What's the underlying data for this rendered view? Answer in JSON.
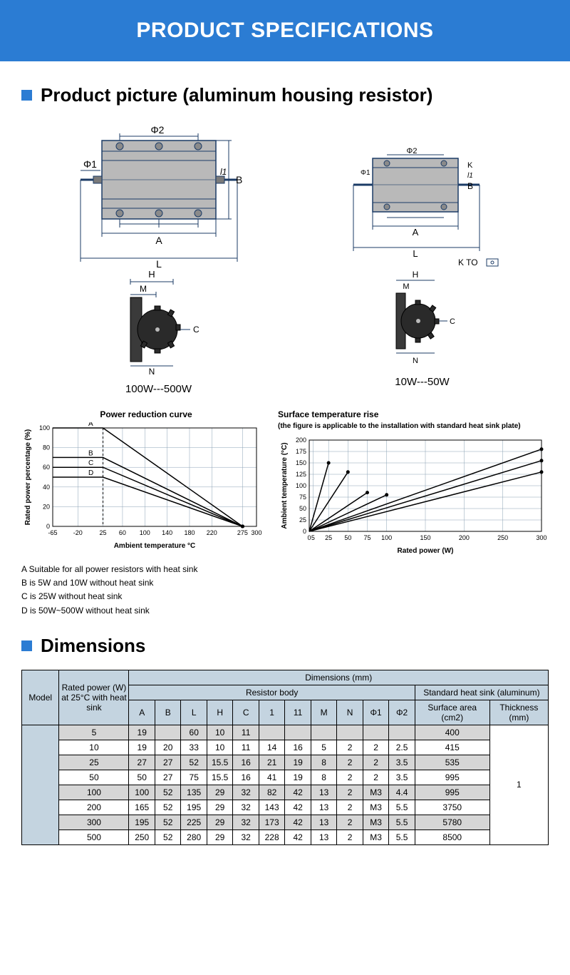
{
  "banner": {
    "title": "PRODUCT SPECIFICATIONS"
  },
  "section1": {
    "heading": "Product picture (aluminum housing resistor)",
    "left_label": "100W---500W",
    "right_label": "10W---50W",
    "diag_labels": {
      "phi1": "Φ1",
      "phi2": "Φ2",
      "A": "A",
      "L": "L",
      "B": "B",
      "l1": "l1",
      "K": "K",
      "H": "H",
      "M": "M",
      "N": "N",
      "C": "C",
      "Kto": "K  TO"
    }
  },
  "chart1": {
    "title": "Power reduction curve",
    "yaxis_label": "Rated power percentage (%)",
    "xaxis_label": "Ambient temperature °C",
    "xlim": [
      -65,
      300
    ],
    "ylim": [
      0,
      100
    ],
    "xticks": [
      -65,
      -20,
      25,
      60,
      100,
      140,
      180,
      220,
      275,
      300
    ],
    "yticks": [
      0,
      20,
      40,
      60,
      80,
      100
    ],
    "series": [
      {
        "name": "A",
        "points": [
          [
            -65,
            100
          ],
          [
            25,
            100
          ],
          [
            275,
            0
          ]
        ]
      },
      {
        "name": "B",
        "points": [
          [
            -65,
            70
          ],
          [
            25,
            70
          ],
          [
            275,
            0
          ]
        ]
      },
      {
        "name": "C",
        "points": [
          [
            -65,
            60
          ],
          [
            25,
            60
          ],
          [
            275,
            0
          ]
        ]
      },
      {
        "name": "D",
        "points": [
          [
            -65,
            50
          ],
          [
            25,
            50
          ],
          [
            275,
            0
          ]
        ]
      }
    ],
    "line_color": "#000000",
    "grid_color": "#8aa0b4",
    "bg": "#ffffff",
    "notes": [
      "A Suitable for all power resistors with heat sink",
      "B is 5W and 10W without heat sink",
      "C is 25W without heat sink",
      "D is 50W~500W without heat sink"
    ]
  },
  "chart2": {
    "title": "Surface temperature rise",
    "subtitle": "(the figure is applicable to the installation with standard heat sink plate)",
    "yaxis_label": "Ambient temperature (°C)",
    "xaxis_label": "Rated power (W)",
    "xlim": [
      0,
      300
    ],
    "ylim": [
      0,
      200
    ],
    "xticks": [
      0,
      5,
      25,
      50,
      75,
      100,
      150,
      200,
      250,
      300
    ],
    "yticks": [
      0,
      25,
      50,
      75,
      100,
      125,
      150,
      175,
      200
    ],
    "series": [
      {
        "points": [
          [
            0,
            0
          ],
          [
            25,
            150
          ]
        ]
      },
      {
        "points": [
          [
            0,
            0
          ],
          [
            50,
            130
          ]
        ]
      },
      {
        "points": [
          [
            0,
            0
          ],
          [
            75,
            85
          ]
        ]
      },
      {
        "points": [
          [
            0,
            0
          ],
          [
            100,
            80
          ]
        ]
      },
      {
        "points": [
          [
            0,
            0
          ],
          [
            300,
            180
          ]
        ]
      },
      {
        "points": [
          [
            0,
            0
          ],
          [
            300,
            155
          ]
        ]
      },
      {
        "points": [
          [
            0,
            0
          ],
          [
            300,
            130
          ]
        ]
      }
    ],
    "line_color": "#000000",
    "grid_color": "#8aa0b4",
    "bg": "#ffffff"
  },
  "section2": {
    "heading": "Dimensions"
  },
  "dimtable": {
    "top_headers": {
      "model": "Model",
      "rated": "Rated power (W) at 25°C with heat sink",
      "dims": "Dimensions (mm)",
      "body": "Resistor body",
      "sink": "Standard heat sink (aluminum)",
      "surf": "Surface area (cm2)",
      "thick": "Thickness (mm)"
    },
    "cols": [
      "A",
      "B",
      "L",
      "H",
      "C",
      "1",
      "11",
      "M",
      "N",
      "Φ1",
      "Φ2"
    ],
    "rows": [
      {
        "rated": "5",
        "cells": [
          "19",
          "",
          "60",
          "10",
          "11",
          "",
          "",
          "",
          "",
          "",
          ""
        ],
        "surf": "400",
        "alt": true
      },
      {
        "rated": "10",
        "cells": [
          "19",
          "20",
          "33",
          "10",
          "11",
          "14",
          "16",
          "5",
          "2",
          "2",
          "2.5"
        ],
        "surf": "415",
        "alt": false
      },
      {
        "rated": "25",
        "cells": [
          "27",
          "27",
          "52",
          "15.5",
          "16",
          "21",
          "19",
          "8",
          "2",
          "2",
          "3.5"
        ],
        "surf": "535",
        "alt": true
      },
      {
        "rated": "50",
        "cells": [
          "50",
          "27",
          "75",
          "15.5",
          "16",
          "41",
          "19",
          "8",
          "2",
          "2",
          "3.5"
        ],
        "surf": "995",
        "alt": false
      },
      {
        "rated": "100",
        "cells": [
          "100",
          "52",
          "135",
          "29",
          "32",
          "82",
          "42",
          "13",
          "2",
          "M3",
          "4.4"
        ],
        "surf": "995",
        "alt": true
      },
      {
        "rated": "200",
        "cells": [
          "165",
          "52",
          "195",
          "29",
          "32",
          "143",
          "42",
          "13",
          "2",
          "M3",
          "5.5"
        ],
        "surf": "3750",
        "alt": false
      },
      {
        "rated": "300",
        "cells": [
          "195",
          "52",
          "225",
          "29",
          "32",
          "173",
          "42",
          "13",
          "2",
          "M3",
          "5.5"
        ],
        "surf": "5780",
        "alt": true
      },
      {
        "rated": "500",
        "cells": [
          "250",
          "52",
          "280",
          "29",
          "32",
          "228",
          "42",
          "13",
          "2",
          "M3",
          "5.5"
        ],
        "surf": "8500",
        "alt": false
      }
    ],
    "thickness": "1"
  }
}
